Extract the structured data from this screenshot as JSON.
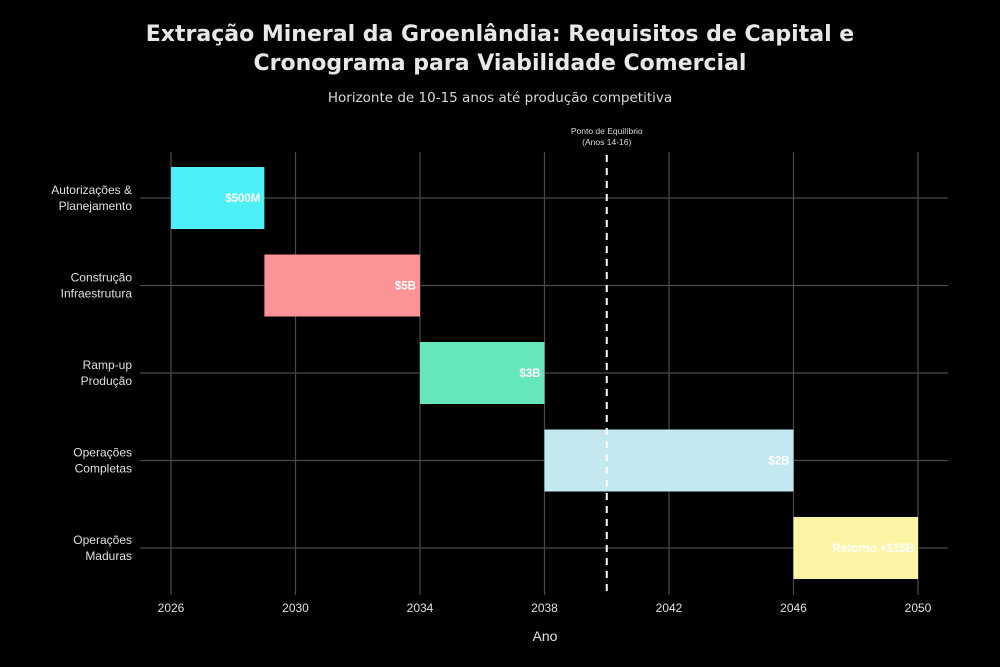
{
  "chart_data": {
    "type": "gantt",
    "title_lines": [
      "Extração Mineral da Groenlândia: Requisitos de Capital e",
      "Cronograma para Viabilidade Comercial"
    ],
    "subtitle": "Horizonte de 10-15 anos até produção competitiva",
    "xlabel": "Ano",
    "ylabel": "",
    "xlim": [
      2026,
      2050
    ],
    "xticks": [
      2026,
      2030,
      2034,
      2038,
      2042,
      2046,
      2050
    ],
    "grid": true,
    "background": "#000000",
    "tasks": [
      {
        "label_lines": [
          "Autorizações &",
          "Planejamento"
        ],
        "start": 2026,
        "end": 2029,
        "value_label": "$500M",
        "color": "#4df0f7"
      },
      {
        "label_lines": [
          "Construção",
          "Infraestrutura"
        ],
        "start": 2029,
        "end": 2034,
        "value_label": "$5B",
        "color": "#fc9396"
      },
      {
        "label_lines": [
          "Ramp-up",
          "Produção"
        ],
        "start": 2034,
        "end": 2038,
        "value_label": "$3B",
        "color": "#66e6bb"
      },
      {
        "label_lines": [
          "Operações",
          "Completas"
        ],
        "start": 2038,
        "end": 2046,
        "value_label": "$2B",
        "color": "#c3e8ef"
      },
      {
        "label_lines": [
          "Operações",
          "Maduras"
        ],
        "start": 2046,
        "end": 2050,
        "value_label": "Retorno +$15B",
        "color": "#fdf5a6"
      }
    ],
    "reference_line": {
      "x": 2040,
      "style": "dashed",
      "color": "#ffffff",
      "annotation_lines": [
        "Ponto de Equilíbrio",
        "(Anos 14-16)"
      ]
    }
  }
}
